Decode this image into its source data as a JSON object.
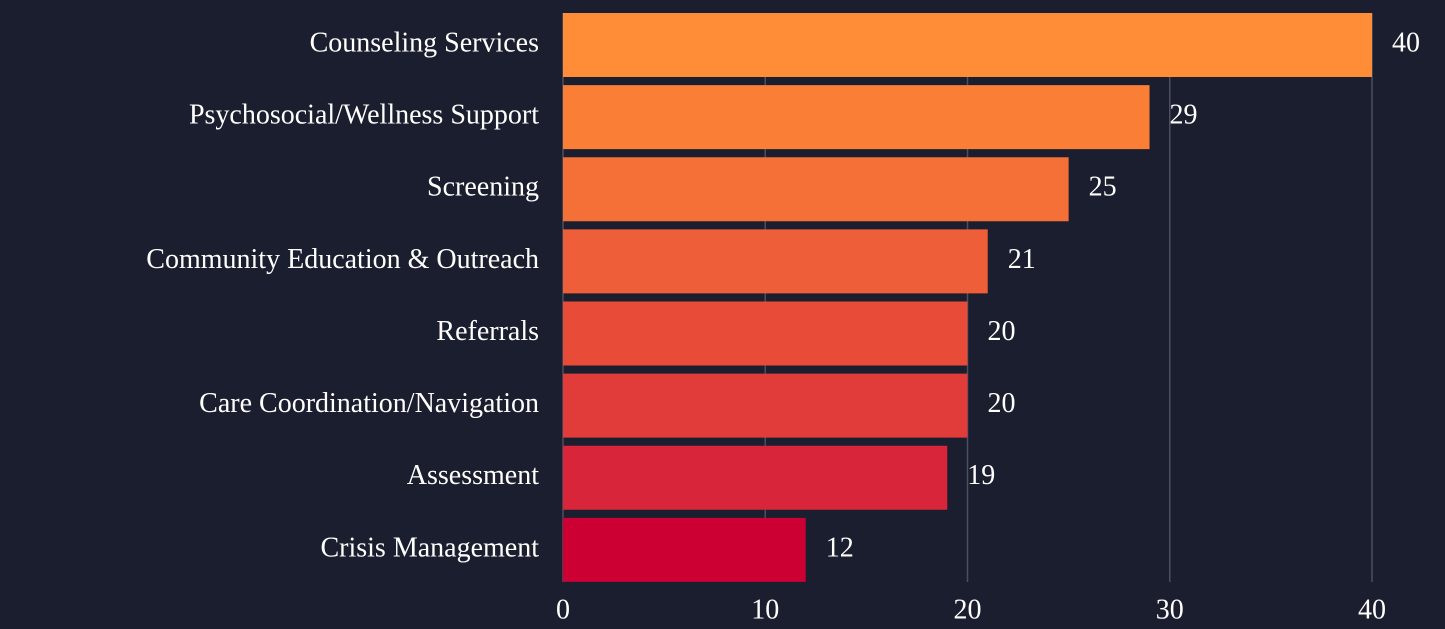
{
  "chart_data": {
    "type": "barh",
    "categories": [
      "Counseling Services",
      "Psychosocial/Wellness Support",
      "Screening",
      "Community Education & Outreach",
      "Referrals",
      "Care Coordination/Navigation",
      "Assessment",
      "Crisis Management"
    ],
    "values": [
      40,
      29,
      25,
      21,
      20,
      20,
      19,
      12
    ],
    "colors": [
      "#ff8c37",
      "#fb7e37",
      "#f47036",
      "#ee5e38",
      "#e84c38",
      "#e13c3a",
      "#d8253a",
      "#cc0033"
    ],
    "xlim": [
      0,
      40
    ],
    "xticks": [
      0,
      10,
      20,
      30,
      40
    ],
    "grid": true
  }
}
